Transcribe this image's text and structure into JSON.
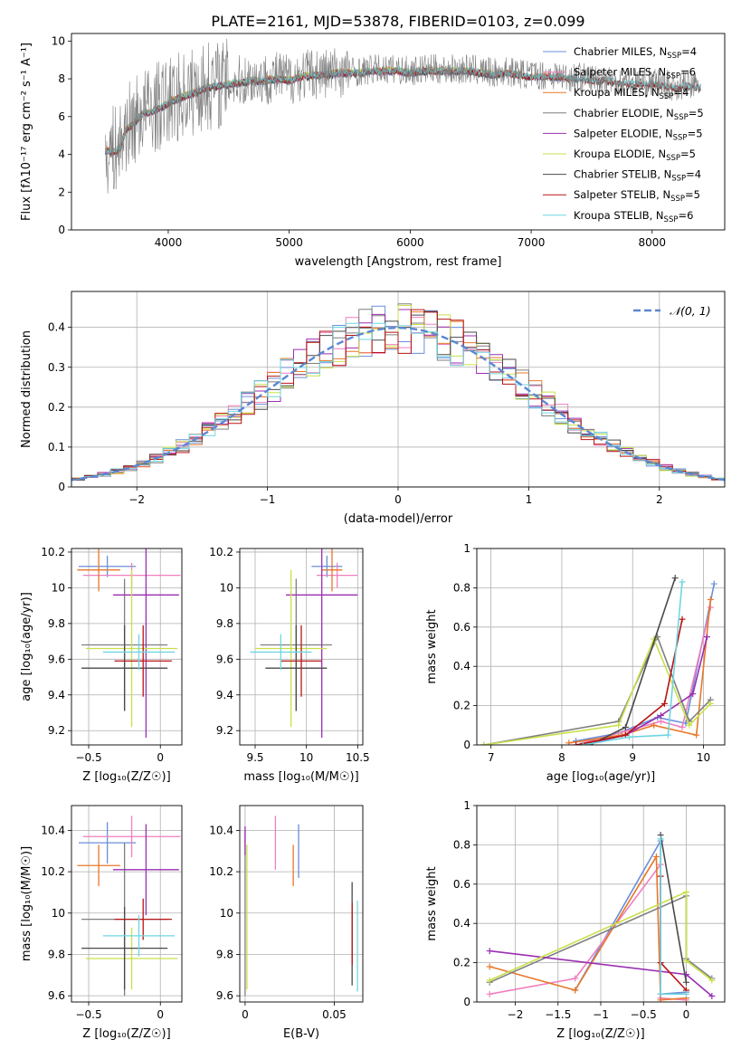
{
  "figure": {
    "title": "PLATE=2161, MJD=53878, FIBERID=0103, z=0.099"
  },
  "colors": [
    "#6a8fd8",
    "#f07fbf",
    "#e8772a",
    "#7f7f7f",
    "#9a2fb0",
    "#c9e04a",
    "#4a4a4a",
    "#b81414",
    "#6fd6e0"
  ],
  "chart_data": [
    {
      "id": "spectrum",
      "type": "line",
      "title": "PLATE=2161, MJD=53878, FIBERID=0103, z=0.099",
      "xlabel": "wavelength [Angstrom, rest frame]",
      "ylabel": "Flux [fλ10⁻¹⁷ erg cm⁻² s⁻¹ A⁻¹]",
      "xlim": [
        3200,
        8600
      ],
      "ylim": [
        0,
        10.4
      ],
      "xticks": [
        4000,
        5000,
        6000,
        7000,
        8000
      ],
      "yticks": [
        0,
        2,
        4,
        6,
        8,
        10
      ],
      "grid": false,
      "legend": "top-right",
      "data_series": {
        "name": "data",
        "color": "#7f7f7f",
        "x": [
          3480,
          3550,
          3600,
          3650,
          3700,
          3750,
          3800,
          3850,
          3900,
          3950,
          4000,
          4100,
          4200,
          4300,
          4400,
          4500,
          4600,
          4700,
          4800,
          4900,
          5000,
          5100,
          5200,
          5300,
          5400,
          5500,
          5600,
          5700,
          5800,
          5900,
          6000,
          6100,
          6200,
          6300,
          6400,
          6500,
          6600,
          6700,
          6800,
          6900,
          7000,
          7100,
          7200,
          7300,
          7400,
          7500,
          7600,
          7700,
          7800,
          7900,
          8000,
          8100,
          8200,
          8300,
          8400
        ],
        "y": [
          4.3,
          4.2,
          4.4,
          5.4,
          5.6,
          6.0,
          6.3,
          6.3,
          6.5,
          6.6,
          6.8,
          7.1,
          7.3,
          7.6,
          7.7,
          7.8,
          7.9,
          8.0,
          8.0,
          8.1,
          8.0,
          8.2,
          8.3,
          8.3,
          8.4,
          8.4,
          8.4,
          8.5,
          8.5,
          8.5,
          8.4,
          8.5,
          8.5,
          8.5,
          8.5,
          8.5,
          8.4,
          8.3,
          8.4,
          8.3,
          8.2,
          8.2,
          8.2,
          8.1,
          8.1,
          8.0,
          8.0,
          7.9,
          7.8,
          7.8,
          7.8,
          7.7,
          7.6,
          7.7,
          7.6
        ]
      },
      "model_y": [
        4.2,
        4.1,
        4.3,
        5.3,
        5.5,
        5.9,
        6.2,
        6.2,
        6.4,
        6.5,
        6.7,
        7.0,
        7.2,
        7.5,
        7.6,
        7.7,
        7.8,
        7.9,
        7.9,
        8.0,
        7.9,
        8.1,
        8.2,
        8.2,
        8.3,
        8.3,
        8.3,
        8.4,
        8.4,
        8.4,
        8.3,
        8.4,
        8.4,
        8.4,
        8.4,
        8.4,
        8.3,
        8.2,
        8.3,
        8.2,
        8.1,
        8.1,
        8.1,
        8.0,
        8.0,
        7.9,
        7.9,
        7.8,
        7.7,
        7.7,
        7.7,
        7.6,
        7.5,
        7.6,
        7.5
      ],
      "series": [
        {
          "name": "Chabrier MILES, NSSP=4",
          "legend_name": "Chabrier MILES, N",
          "legend_sub": "SSP",
          "legend_tail": "=4",
          "x_end": 7300
        },
        {
          "name": "Salpeter MILES, NSSP=6",
          "legend_name": "Salpeter MILES, N",
          "legend_sub": "SSP",
          "legend_tail": "=6",
          "x_end": 7300
        },
        {
          "name": "Kroupa MILES, NSSP=4",
          "legend_name": "Kroupa MILES, N",
          "legend_sub": "SSP",
          "legend_tail": "=4",
          "x_end": 7300
        },
        {
          "name": "Chabrier ELODIE, NSSP=5",
          "legend_name": "Chabrier ELODIE, N",
          "legend_sub": "SSP",
          "legend_tail": "=5",
          "x_end": 6800
        },
        {
          "name": "Salpeter ELODIE, NSSP=5",
          "legend_name": "Salpeter ELODIE, N",
          "legend_sub": "SSP",
          "legend_tail": "=5",
          "x_end": 6800
        },
        {
          "name": "Kroupa ELODIE, NSSP=5",
          "legend_name": "Kroupa ELODIE, N",
          "legend_sub": "SSP",
          "legend_tail": "=5",
          "x_end": 6800
        },
        {
          "name": "Chabrier STELIB, NSSP=4",
          "legend_name": "Chabrier STELIB, N",
          "legend_sub": "SSP",
          "legend_tail": "=4",
          "x_end": 8400
        },
        {
          "name": "Salpeter STELIB, NSSP=5",
          "legend_name": "Salpeter STELIB, N",
          "legend_sub": "SSP",
          "legend_tail": "=5",
          "x_end": 8400
        },
        {
          "name": "Kroupa STELIB, NSSP=6",
          "legend_name": "Kroupa STELIB, N",
          "legend_sub": "SSP",
          "legend_tail": "=6",
          "x_end": 8400
        }
      ]
    },
    {
      "id": "residuals",
      "type": "histogram",
      "xlabel": "(data-model)/error",
      "ylabel": "Normed distribution",
      "xlim": [
        -2.5,
        2.5
      ],
      "ylim": [
        0,
        0.49
      ],
      "xticks": [
        -2,
        -1,
        0,
        1,
        2
      ],
      "yticks": [
        0,
        0.1,
        0.2,
        0.3,
        0.4
      ],
      "grid": true,
      "legend": "top-right",
      "normal_label": "𝒩(0, 1)",
      "bin_width": 0.1
    },
    {
      "id": "age_vs_Z",
      "type": "errorbar",
      "xlabel": "Z [log₁₀(Z/Z☉)]",
      "ylabel": "age  [log₁₀(age/yr)]",
      "xlim": [
        -0.62,
        0.15
      ],
      "ylim": [
        9.12,
        10.22
      ],
      "xticks": [
        -0.5,
        0.0
      ],
      "yticks": [
        9.2,
        9.4,
        9.6,
        9.8,
        10.0,
        10.2
      ],
      "grid": true,
      "points": [
        {
          "x": -0.37,
          "xerr": 0.2,
          "y": 10.12,
          "yerr": 0.06
        },
        {
          "x": -0.2,
          "xerr": 0.34,
          "y": 10.07,
          "yerr": 0.07
        },
        {
          "x": -0.43,
          "xerr": 0.15,
          "y": 10.1,
          "yerr": 0.12
        },
        {
          "x": -0.25,
          "xerr": 0.3,
          "y": 9.68,
          "yerr": 0.37
        },
        {
          "x": -0.1,
          "xerr": 0.23,
          "y": 9.96,
          "yerr": 0.8
        },
        {
          "x": -0.2,
          "xerr": 0.32,
          "y": 9.66,
          "yerr": 0.44
        },
        {
          "x": -0.25,
          "xerr": 0.3,
          "y": 9.55,
          "yerr": 0.24
        },
        {
          "x": -0.12,
          "xerr": 0.2,
          "y": 9.59,
          "yerr": 0.2
        },
        {
          "x": -0.15,
          "xerr": 0.25,
          "y": 9.64,
          "yerr": 0.1
        }
      ]
    },
    {
      "id": "age_vs_mass",
      "type": "errorbar",
      "xlabel": "mass [log₁₀(M/M☉)]",
      "ylabel": "",
      "xlim": [
        9.35,
        10.55
      ],
      "ylim": [
        9.12,
        10.22
      ],
      "xticks": [
        9.5,
        10.0,
        10.5
      ],
      "yticks": [
        9.2,
        9.4,
        9.6,
        9.8,
        10.0,
        10.2
      ],
      "grid": true,
      "points": [
        {
          "x": 10.2,
          "xerr": 0.15,
          "y": 10.12,
          "yerr": 0.06
        },
        {
          "x": 10.3,
          "xerr": 0.2,
          "y": 10.07,
          "yerr": 0.07
        },
        {
          "x": 10.25,
          "xerr": 0.1,
          "y": 10.1,
          "yerr": 0.12
        },
        {
          "x": 9.9,
          "xerr": 0.35,
          "y": 9.68,
          "yerr": 0.37
        },
        {
          "x": 10.15,
          "xerr": 0.35,
          "y": 9.96,
          "yerr": 0.8
        },
        {
          "x": 9.85,
          "xerr": 0.35,
          "y": 9.66,
          "yerr": 0.44
        },
        {
          "x": 9.9,
          "xerr": 0.3,
          "y": 9.55,
          "yerr": 0.24
        },
        {
          "x": 9.95,
          "xerr": 0.2,
          "y": 9.59,
          "yerr": 0.2
        },
        {
          "x": 9.75,
          "xerr": 0.3,
          "y": 9.64,
          "yerr": 0.1
        }
      ]
    },
    {
      "id": "mw_vs_age",
      "type": "line",
      "xlabel": "age  [log₁₀(age/yr)]",
      "ylabel": "mass weight",
      "xlim": [
        6.8,
        10.3
      ],
      "ylim": [
        0,
        1.0
      ],
      "xticks": [
        7,
        8,
        9,
        10
      ],
      "yticks": [
        0,
        0.2,
        0.4,
        0.6,
        0.8,
        1.0
      ],
      "grid": true,
      "series": [
        {
          "x": [
            8.2,
            8.8,
            9.35,
            9.75,
            10.15
          ],
          "y": [
            0.02,
            0.06,
            0.14,
            0.11,
            0.82
          ]
        },
        {
          "x": [
            8.3,
            8.9,
            9.4,
            9.7,
            10.1
          ],
          "y": [
            0.01,
            0.07,
            0.12,
            0.09,
            0.7
          ]
        },
        {
          "x": [
            8.1,
            8.85,
            9.3,
            9.9,
            10.1
          ],
          "y": [
            0.01,
            0.05,
            0.1,
            0.05,
            0.74
          ]
        },
        {
          "x": [
            6.9,
            8.8,
            9.35,
            9.8,
            10.1
          ],
          "y": [
            0.0,
            0.12,
            0.55,
            0.12,
            0.23
          ]
        },
        {
          "x": [
            8.3,
            8.9,
            9.4,
            9.85,
            10.05
          ],
          "y": [
            0.0,
            0.05,
            0.15,
            0.26,
            0.55
          ]
        },
        {
          "x": [
            6.9,
            8.8,
            9.3,
            9.8,
            10.1
          ],
          "y": [
            0.0,
            0.1,
            0.54,
            0.1,
            0.21
          ]
        },
        {
          "x": [
            8.4,
            8.9,
            9.6
          ],
          "y": [
            0.0,
            0.09,
            0.85
          ]
        },
        {
          "x": [
            8.2,
            8.9,
            9.45,
            9.7
          ],
          "y": [
            0.0,
            0.05,
            0.21,
            0.64
          ]
        },
        {
          "x": [
            8.3,
            8.95,
            9.5,
            9.7
          ],
          "y": [
            0.0,
            0.04,
            0.05,
            0.83
          ]
        }
      ]
    },
    {
      "id": "mass_vs_Z",
      "type": "errorbar",
      "xlabel": "Z [log₁₀(Z/Z☉)]",
      "ylabel": "mass [log₁₀(M/M☉)]",
      "xlim": [
        -0.62,
        0.15
      ],
      "ylim": [
        9.57,
        10.52
      ],
      "xticks": [
        -0.5,
        0.0
      ],
      "yticks": [
        9.6,
        9.8,
        10.0,
        10.2,
        10.4
      ],
      "grid": true,
      "points": [
        {
          "x": -0.37,
          "xerr": 0.2,
          "y": 10.34,
          "yerr": 0.1
        },
        {
          "x": -0.2,
          "xerr": 0.34,
          "y": 10.37,
          "yerr": 0.1
        },
        {
          "x": -0.43,
          "xerr": 0.15,
          "y": 10.23,
          "yerr": 0.1
        },
        {
          "x": -0.25,
          "xerr": 0.3,
          "y": 9.97,
          "yerr": 0.37
        },
        {
          "x": -0.1,
          "xerr": 0.23,
          "y": 10.21,
          "yerr": 0.22
        },
        {
          "x": -0.2,
          "xerr": 0.32,
          "y": 9.78,
          "yerr": 0.15
        },
        {
          "x": -0.25,
          "xerr": 0.3,
          "y": 9.83,
          "yerr": 0.2
        },
        {
          "x": -0.12,
          "xerr": 0.2,
          "y": 9.97,
          "yerr": 0.1
        },
        {
          "x": -0.15,
          "xerr": 0.25,
          "y": 9.89,
          "yerr": 0.1
        }
      ]
    },
    {
      "id": "mass_vs_EBV",
      "type": "errorbar",
      "xlabel": "E(B-V)",
      "ylabel": "",
      "xlim": [
        -0.003,
        0.066
      ],
      "ylim": [
        9.57,
        10.52
      ],
      "xticks": [
        0.0,
        0.05
      ],
      "yticks": [
        9.6,
        9.8,
        10.0,
        10.2,
        10.4
      ],
      "grid": true,
      "points": [
        {
          "x": 0.03,
          "xerr": 0,
          "y": 10.3,
          "yerr": 0.13
        },
        {
          "x": 0.017,
          "xerr": 0,
          "y": 10.34,
          "yerr": 0.13
        },
        {
          "x": 0.027,
          "xerr": 0,
          "y": 10.23,
          "yerr": 0.1
        },
        {
          "x": 0.0,
          "xerr": 0,
          "y": 10.0,
          "yerr": 0.4
        },
        {
          "x": 0.0,
          "xerr": 0,
          "y": 10.35,
          "yerr": 0.07
        },
        {
          "x": 0.001,
          "xerr": 0,
          "y": 9.98,
          "yerr": 0.35
        },
        {
          "x": 0.06,
          "xerr": 0,
          "y": 9.9,
          "yerr": 0.25
        },
        {
          "x": 0.06,
          "xerr": 0,
          "y": 9.9,
          "yerr": 0.15
        },
        {
          "x": 0.063,
          "xerr": 0,
          "y": 9.84,
          "yerr": 0.22
        }
      ]
    },
    {
      "id": "mw_vs_Z",
      "type": "line",
      "xlabel": "Z [log₁₀(Z/Z☉)]",
      "ylabel": "mass weight",
      "xlim": [
        -2.45,
        0.45
      ],
      "ylim": [
        0,
        1.0
      ],
      "xticks": [
        -2.0,
        -1.5,
        -1.0,
        -0.5,
        0.0
      ],
      "yticks": [
        0,
        0.2,
        0.4,
        0.6,
        0.8,
        1.0
      ],
      "grid": true,
      "series": [
        {
          "x": [
            -1.3,
            -0.3,
            -0.3,
            0.0
          ],
          "y": [
            0.06,
            0.82,
            0.04,
            0.05
          ]
        },
        {
          "x": [
            -2.3,
            -1.3,
            -0.3,
            -0.3,
            0.0
          ],
          "y": [
            0.04,
            0.12,
            0.7,
            0.02,
            0.01
          ]
        },
        {
          "x": [
            -2.3,
            -1.3,
            -0.35,
            -0.3,
            0.0
          ],
          "y": [
            0.18,
            0.06,
            0.74,
            0.01,
            0.02
          ]
        },
        {
          "x": [
            -2.3,
            0.0,
            0.0,
            0.3
          ],
          "y": [
            0.1,
            0.54,
            0.22,
            0.12
          ]
        },
        {
          "x": [
            -2.3,
            0.0,
            0.3
          ],
          "y": [
            0.26,
            0.14,
            0.03
          ]
        },
        {
          "x": [
            -2.3,
            0.0,
            0.0,
            0.3
          ],
          "y": [
            0.11,
            0.56,
            0.21,
            0.11
          ]
        },
        {
          "x": [
            -0.3,
            0.0
          ],
          "y": [
            0.85,
            0.1
          ]
        },
        {
          "x": [
            -0.3,
            -0.3,
            0.0
          ],
          "y": [
            0.64,
            0.2,
            0.06
          ]
        },
        {
          "x": [
            -0.3,
            -0.3,
            0.0
          ],
          "y": [
            0.83,
            0.04,
            0.04
          ]
        }
      ]
    }
  ]
}
